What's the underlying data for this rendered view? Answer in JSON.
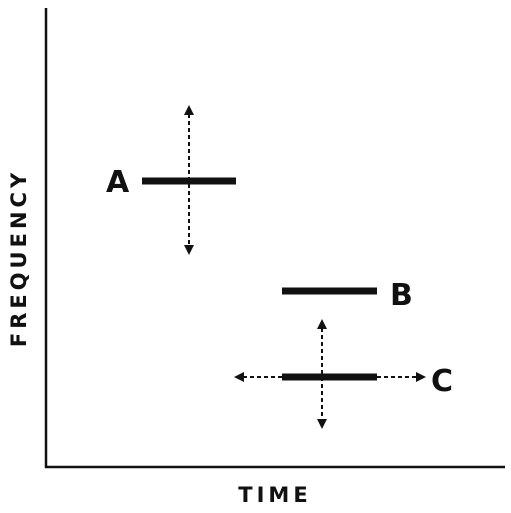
{
  "axes": {
    "x_label": "TIME",
    "y_label": "FREQUENCY"
  },
  "segments": [
    {
      "label": "A",
      "arrows": "vertical"
    },
    {
      "label": "B",
      "arrows": "none"
    },
    {
      "label": "C",
      "arrows": "vertical-and-horizontal"
    }
  ],
  "colors": {
    "ink": "#111111",
    "background": "#ffffff"
  }
}
